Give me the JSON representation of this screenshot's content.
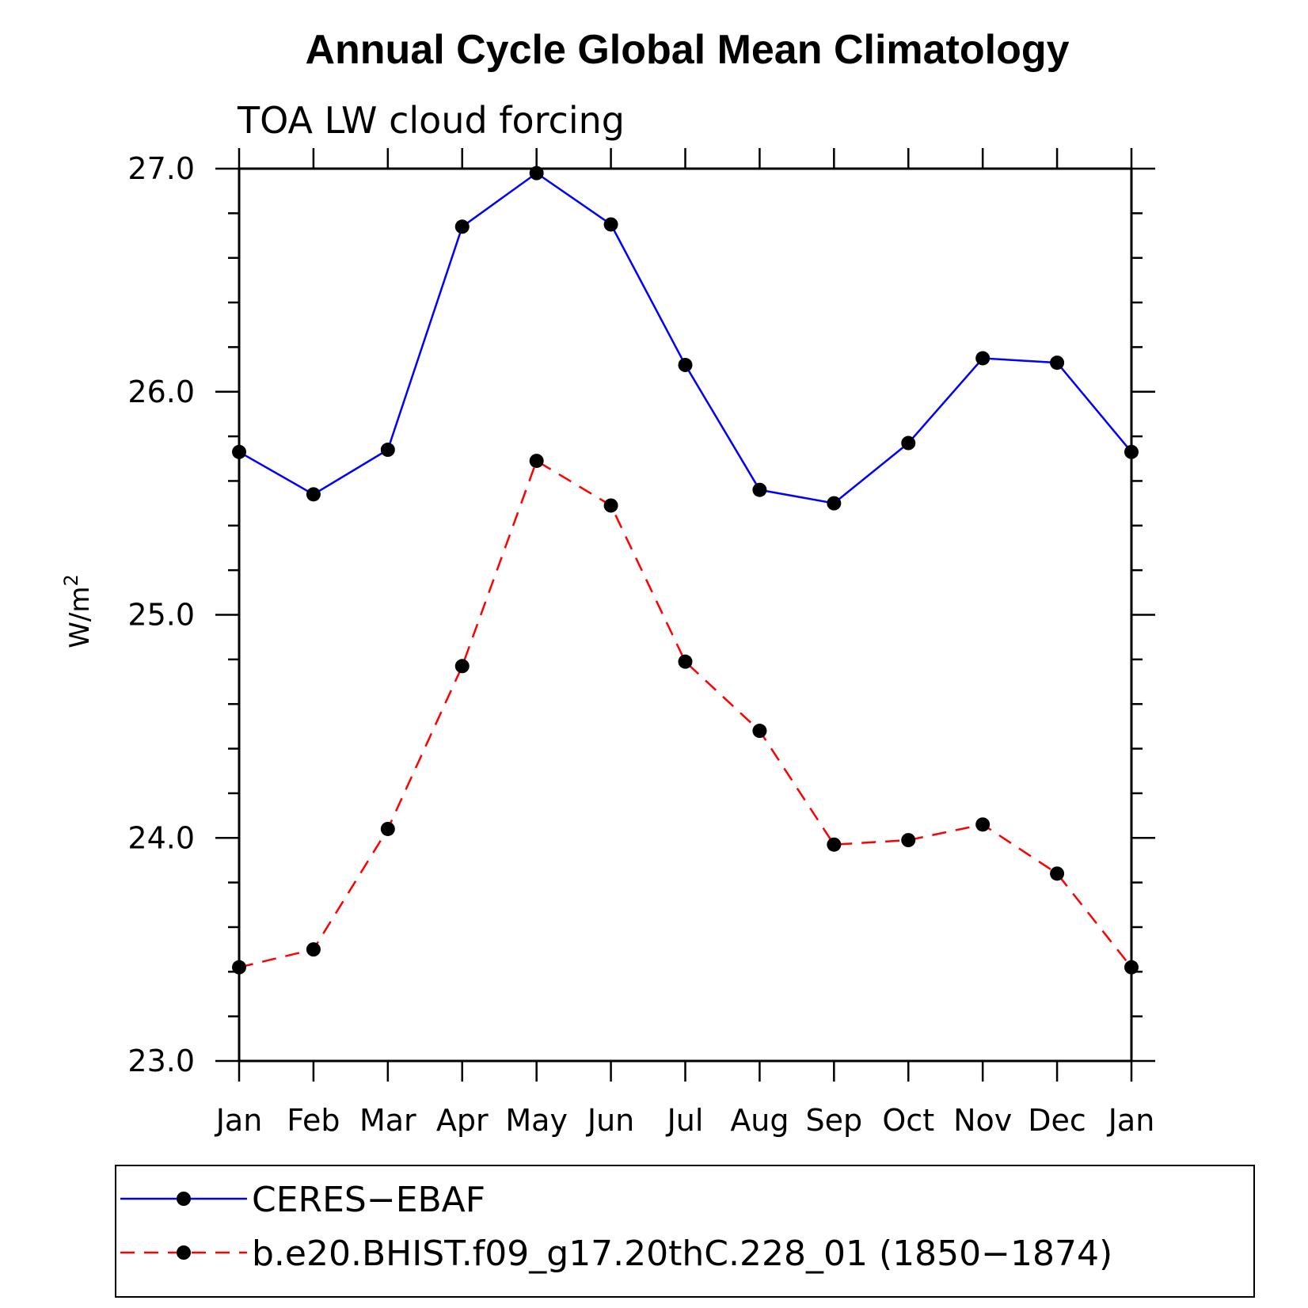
{
  "chart_data": {
    "type": "line",
    "title": "Annual Cycle Global Mean Climatology",
    "subtitle": "TOA LW cloud forcing",
    "ylabel": "W/m",
    "ylabel_superscript": "2",
    "xlabel": "",
    "categories": [
      "Jan",
      "Feb",
      "Mar",
      "Apr",
      "May",
      "Jun",
      "Jul",
      "Aug",
      "Sep",
      "Oct",
      "Nov",
      "Dec",
      "Jan"
    ],
    "ylim": [
      23.0,
      27.0
    ],
    "yticks": [
      "23.0",
      "24.0",
      "25.0",
      "26.0",
      "27.0"
    ],
    "legend_placement": "bottom",
    "grid": false,
    "series": [
      {
        "name": "CERES−EBAF",
        "color": "#0000ff",
        "dash": "solid",
        "marker": "filled-circle",
        "values": [
          25.73,
          25.54,
          25.74,
          26.74,
          26.98,
          26.75,
          26.12,
          25.56,
          25.5,
          25.77,
          26.15,
          26.13,
          25.73
        ]
      },
      {
        "name": "b.e20.BHIST.f09_g17.20thC.228_01 (1850−1874)",
        "color": "#ff0000",
        "dash": "dashed",
        "marker": "filled-circle",
        "values": [
          23.42,
          23.5,
          24.04,
          24.77,
          25.69,
          25.49,
          24.79,
          24.48,
          23.97,
          23.99,
          24.06,
          23.84,
          23.42
        ]
      }
    ]
  }
}
